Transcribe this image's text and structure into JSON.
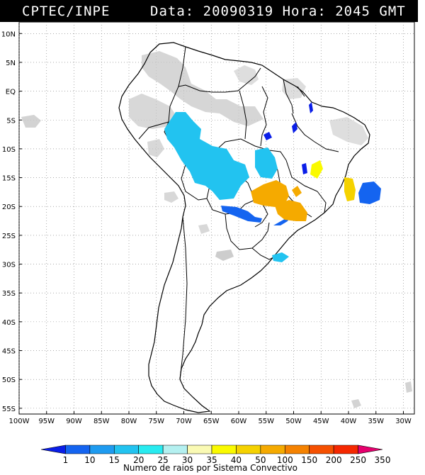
{
  "header": {
    "org": "CPTEC/INPE",
    "stamp": "Data: 20090319 Hora: 2045 GMT"
  },
  "map": {
    "lat_labels": [
      "10N",
      "5N",
      "EQ",
      "5S",
      "10S",
      "15S",
      "20S",
      "25S",
      "30S",
      "35S",
      "40S",
      "45S",
      "50S",
      "55S"
    ],
    "lon_labels": [
      "100W",
      "95W",
      "90W",
      "85W",
      "80W",
      "75W",
      "70W",
      "65W",
      "60W",
      "55W",
      "50W",
      "45W",
      "40W",
      "35W",
      "30W"
    ],
    "lon_range": [
      -100,
      -28
    ],
    "lat_range": [
      -56,
      12
    ],
    "grid": "dotted",
    "land_color": "#ffffff",
    "cloud_color": "#c8c8c8"
  },
  "colorbar": {
    "labels": [
      "1",
      "10",
      "15",
      "20",
      "25",
      "30",
      "35",
      "40",
      "50",
      "100",
      "150",
      "200",
      "250",
      "350"
    ],
    "colors": [
      "#0a1ee8",
      "#1464f0",
      "#1e9bf0",
      "#22c3f0",
      "#28ebf0",
      "#b4f0f0",
      "#fafab4",
      "#fafa00",
      "#f5d200",
      "#f5aa00",
      "#f58200",
      "#f55000",
      "#f52800",
      "#e6006e"
    ],
    "title": "Numero de raios por Sistema Convectivo"
  }
}
